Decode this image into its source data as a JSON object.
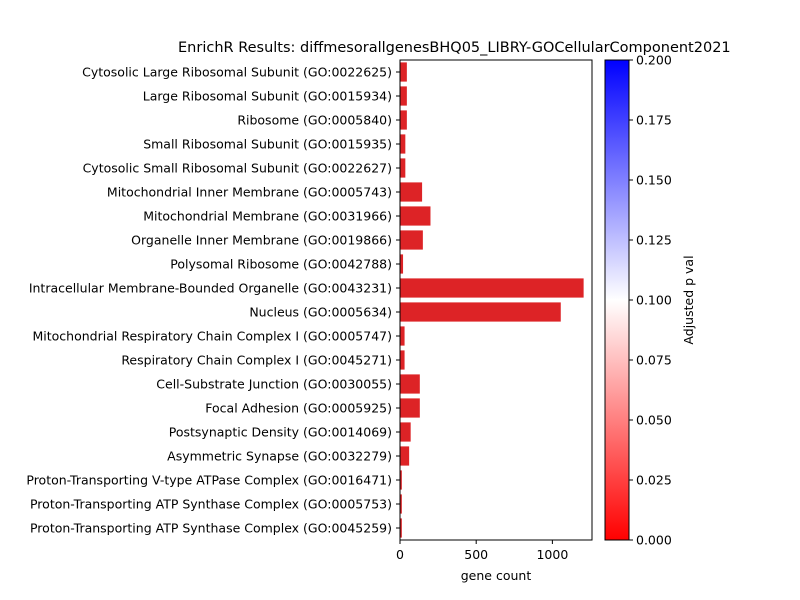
{
  "chart_data": {
    "type": "bar",
    "orientation": "horizontal",
    "title": "EnrichR Results: diffmesorallgenesBHQ05_LIBRY-GOCellularComponent2021",
    "xlabel": "gene count",
    "ylabel": "",
    "xlim": [
      0,
      1260
    ],
    "xticks": [
      0,
      500,
      1000
    ],
    "grid": false,
    "categories": [
      "Cytosolic Large Ribosomal Subunit (GO:0022625)",
      "Large Ribosomal Subunit (GO:0015934)",
      "Ribosome (GO:0005840)",
      "Small Ribosomal Subunit (GO:0015935)",
      "Cytosolic Small Ribosomal Subunit (GO:0022627)",
      "Mitochondrial Inner Membrane (GO:0005743)",
      "Mitochondrial Membrane (GO:0031966)",
      "Organelle Inner Membrane (GO:0019866)",
      "Polysomal Ribosome (GO:0042788)",
      "Intracellular Membrane-Bounded Organelle (GO:0043231)",
      "Nucleus (GO:0005634)",
      "Mitochondrial Respiratory Chain Complex I (GO:0005747)",
      "Respiratory Chain Complex I (GO:0045271)",
      "Cell-Substrate Junction (GO:0030055)",
      "Focal Adhesion (GO:0005925)",
      "Postsynaptic Density (GO:0014069)",
      "Asymmetric Synapse (GO:0032279)",
      "Proton-Transporting V-type ATPase Complex (GO:0016471)",
      "Proton-Transporting ATP Synthase Complex (GO:0005753)",
      "Proton-Transporting ATP Synthase Complex (GO:0045259)"
    ],
    "values": [
      45,
      45,
      45,
      35,
      35,
      145,
      200,
      150,
      20,
      1205,
      1055,
      30,
      30,
      130,
      130,
      70,
      60,
      12,
      12,
      12
    ],
    "bar_color": "#dd2326",
    "colorbar": {
      "label": "Adjusted p val",
      "range": [
        0,
        0.2
      ],
      "ticks": [
        "0.000",
        "0.025",
        "0.050",
        "0.075",
        "0.100",
        "0.125",
        "0.150",
        "0.175",
        "0.200"
      ],
      "color_low": "#ff0000",
      "color_mid": "#ffffff",
      "color_high": "#0000ff"
    }
  }
}
